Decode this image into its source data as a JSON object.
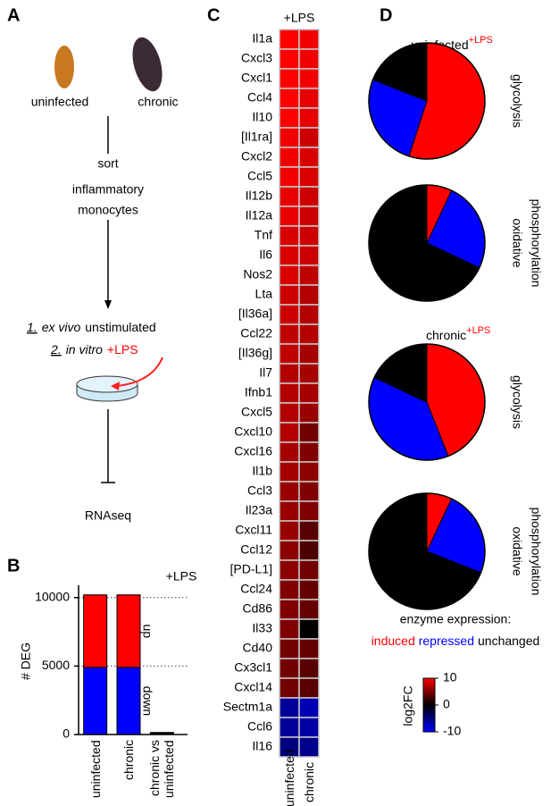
{
  "panel_labels": [
    "A",
    "B",
    "C",
    "D"
  ],
  "panel_a": {
    "samples": [
      "uninfected",
      "chronic"
    ],
    "step": [
      "sort",
      "inflammatory",
      "monocytes"
    ],
    "conditions": [
      {
        "number": "1.",
        "method": "ex vivo",
        "treatment": "unstimulated"
      },
      {
        "number": "2.",
        "method": "in vitro",
        "treatment": "+LPS"
      }
    ],
    "readout": "RNAseq"
  },
  "panel_d": {
    "groups": [
      {
        "title": "uninfected",
        "superscript": "+LPS"
      },
      {
        "title": "chronic",
        "superscript": "+LPS"
      }
    ],
    "legend": {
      "title": "enzyme expression:",
      "items": [
        "induced",
        "repressed",
        "unchanged"
      ],
      "colors": [
        "#ff0000",
        "#0000ff",
        "#000000"
      ]
    }
  },
  "chart_data": [
    {
      "type": "bar",
      "stacked": true,
      "annotation": "+LPS",
      "ylabel": "# DEG",
      "categories": [
        "uninfected",
        "chronic",
        "chronic vs uninfected"
      ],
      "series": [
        {
          "name": "down",
          "color": "#0000ff",
          "values": [
            4900,
            4900,
            null
          ]
        },
        {
          "name": "up",
          "color": "#ff0000",
          "values": [
            5300,
            5300,
            null
          ]
        },
        {
          "name": null,
          "color": "#000000",
          "values": [
            null,
            null,
            150
          ]
        }
      ],
      "ylim": [
        0,
        10900
      ],
      "yticks": [
        0,
        5000,
        10000
      ],
      "grid": true
    },
    {
      "type": "heatmap",
      "title": "+LPS",
      "rows": [
        "Il1a",
        "Cxcl3",
        "Cxcl1",
        "Ccl4",
        "Il10",
        "[Il1ra]",
        "Cxcl2",
        "Ccl5",
        "Il12b",
        "Il12a",
        "Tnf",
        "Il6",
        "Nos2",
        "Lta",
        "[Il36a]",
        "Ccl22",
        "[Il36g]",
        "Il7",
        "Ifnb1",
        "Cxcl5",
        "Cxcl10",
        "Cxcl16",
        "Il1b",
        "Ccl3",
        "Il23a",
        "Cxcl11",
        "Ccl12",
        "[PD-L1]",
        "Ccl24",
        "Cd86",
        "Il33",
        "Cd40",
        "Cx3cl1",
        "Cxcl14",
        "Sectm1a",
        "Ccl6",
        "Il16"
      ],
      "columns": [
        "uninfected",
        "chronic"
      ],
      "values": [
        [
          10,
          9.5
        ],
        [
          10,
          9.5
        ],
        [
          10,
          9.5
        ],
        [
          10,
          9
        ],
        [
          10,
          9
        ],
        [
          9.5,
          8
        ],
        [
          9.5,
          8.5
        ],
        [
          9.5,
          8.5
        ],
        [
          9,
          8
        ],
        [
          9,
          8
        ],
        [
          8.5,
          8
        ],
        [
          8.5,
          8
        ],
        [
          8.5,
          7.5
        ],
        [
          8,
          7
        ],
        [
          8,
          7
        ],
        [
          7.5,
          7
        ],
        [
          7.5,
          6.5
        ],
        [
          7,
          6.5
        ],
        [
          7,
          6.5
        ],
        [
          7,
          6
        ],
        [
          7,
          4.5
        ],
        [
          6.5,
          5
        ],
        [
          6.5,
          5.5
        ],
        [
          6,
          5
        ],
        [
          6,
          5
        ],
        [
          6,
          3.5
        ],
        [
          5.5,
          3
        ],
        [
          5.5,
          4.5
        ],
        [
          5,
          4
        ],
        [
          5,
          4
        ],
        [
          5,
          0
        ],
        [
          4.5,
          4
        ],
        [
          4.5,
          3.5
        ],
        [
          4.5,
          3.5
        ],
        [
          -6,
          -7
        ],
        [
          -6,
          -6.5
        ],
        [
          -5,
          -5.5
        ]
      ],
      "colorbar": {
        "label": "log2FC",
        "lim": [
          -10,
          10
        ],
        "ticks": [
          10,
          0,
          -10
        ],
        "colors": [
          "#0000ff",
          "#000000",
          "#ff0000"
        ]
      }
    },
    {
      "type": "pie",
      "label": [
        "glycolysis"
      ],
      "values": [
        55,
        26,
        19
      ],
      "colors": [
        "#ff0000",
        "#0000ff",
        "#000000"
      ]
    },
    {
      "type": "pie",
      "label": [
        "oxidative",
        "phosphorylation"
      ],
      "values": [
        7,
        25,
        68
      ],
      "colors": [
        "#ff0000",
        "#0000ff",
        "#000000"
      ]
    },
    {
      "type": "pie",
      "label": [
        "glycolysis"
      ],
      "values": [
        44,
        38,
        18
      ],
      "colors": [
        "#ff0000",
        "#0000ff",
        "#000000"
      ]
    },
    {
      "type": "pie",
      "label": [
        "oxidative",
        "phosphorylation"
      ],
      "values": [
        7,
        24,
        69
      ],
      "colors": [
        "#ff0000",
        "#0000ff",
        "#000000"
      ]
    }
  ]
}
